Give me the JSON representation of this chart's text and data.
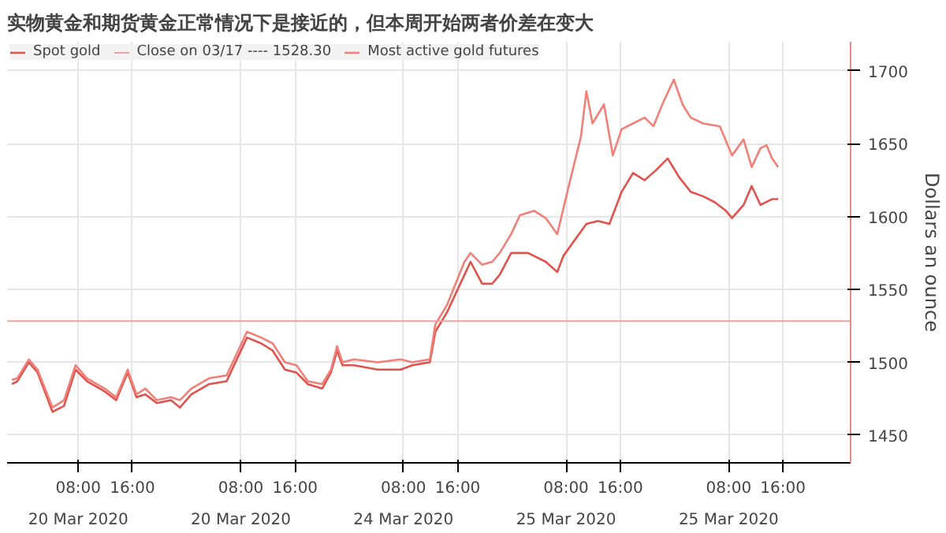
{
  "chart_data": {
    "type": "line",
    "title": "实物黄金和期货黄金正常情况下是接近的，但本周开始两者价差在变大",
    "ylabel": "Dollars an ounce",
    "xlim": [
      "2020-03-20T21:30",
      "2020-03-26T02:00"
    ],
    "ylim": [
      1431,
      1720
    ],
    "annotations": [
      "20 Mar 2020",
      "20 Mar 2020",
      "24 Mar 2020",
      "25 Mar 2020",
      "25 Mar 2020"
    ],
    "xticks": [
      {
        "value": "2020-03-21T08:00",
        "label": "08:00"
      },
      {
        "value": "2020-03-21T16:00",
        "label": "16:00"
      },
      {
        "value": "2020-03-22T08:00",
        "label": "08:00"
      },
      {
        "value": "2020-03-22T16:00",
        "label": "16:00"
      },
      {
        "value": "2020-03-23T08:00",
        "label": "08:00"
      },
      {
        "value": "2020-03-23T16:00",
        "label": "16:00"
      },
      {
        "value": "2020-03-24T08:00",
        "label": "08:00"
      },
      {
        "value": "2020-03-24T16:00",
        "label": "16:00"
      },
      {
        "value": "2020-03-25T08:00",
        "label": "08:00"
      },
      {
        "value": "2020-03-25T16:00",
        "label": "16:00"
      }
    ],
    "yticks": [
      1450,
      1500,
      1550,
      1600,
      1650,
      1700
    ],
    "grid": true,
    "legend": "top left",
    "ref_lines": [
      {
        "axis": "y",
        "value": 1528.3,
        "label": "Close on 03/17 ---- 1528.30",
        "color": "#f2a0a0"
      }
    ],
    "series": [
      {
        "name": "Spot gold",
        "color": "#e0524c",
        "x": [
          "2020-03-20T22:12",
          "2020-03-20T23:00",
          "2020-03-21T00:42",
          "2020-03-21T02:00",
          "2020-03-21T04:12",
          "2020-03-21T05:54",
          "2020-03-21T07:36",
          "2020-03-21T09:18",
          "2020-03-21T11:54",
          "2020-03-21T13:36",
          "2020-03-21T15:18",
          "2020-03-21T16:36",
          "2020-03-21T17:54",
          "2020-03-21T19:36",
          "2020-03-21T21:42",
          "2020-03-21T23:00",
          "2020-03-22T00:42",
          "2020-03-22T03:18",
          "2020-03-22T05:54",
          "2020-03-22T07:36",
          "2020-03-22T08:54",
          "2020-03-22T11:00",
          "2020-03-22T12:42",
          "2020-03-22T14:30",
          "2020-03-22T16:12",
          "2020-03-22T17:54",
          "2020-03-22T20:00",
          "2020-03-22T21:18",
          "2020-03-22T22:12",
          "2020-03-22T23:00",
          "2020-03-23T00:42",
          "2020-03-23T04:12",
          "2020-03-23T07:36",
          "2020-03-23T09:18",
          "2020-03-23T11:54",
          "2020-03-23T12:42",
          "2020-03-23T14:24",
          "2020-03-23T17:00",
          "2020-03-23T17:54",
          "2020-03-23T19:36",
          "2020-03-23T21:06",
          "2020-03-23T22:12",
          "2020-03-23T23:54",
          "2020-03-24T02:24",
          "2020-03-24T05:00",
          "2020-03-24T06:42",
          "2020-03-24T07:36",
          "2020-03-24T09:18",
          "2020-03-24T11:00",
          "2020-03-24T12:42",
          "2020-03-24T14:24",
          "2020-03-24T16:12",
          "2020-03-24T17:54",
          "2020-03-24T19:36",
          "2020-03-24T21:18",
          "2020-03-24T23:00",
          "2020-03-25T00:42",
          "2020-03-25T02:24",
          "2020-03-25T04:12",
          "2020-03-25T05:54",
          "2020-03-25T07:36",
          "2020-03-25T08:30",
          "2020-03-25T10:12",
          "2020-03-25T11:24",
          "2020-03-25T12:42",
          "2020-03-25T14:24",
          "2020-03-25T15:18"
        ],
        "values": [
          1485,
          1487,
          1500,
          1493,
          1466,
          1470,
          1495,
          1487,
          1480,
          1474,
          1493,
          1476,
          1478,
          1472,
          1474,
          1469,
          1478,
          1485,
          1487,
          1504,
          1517,
          1513,
          1508,
          1495,
          1493,
          1485,
          1482,
          1493,
          1508,
          1498,
          1498,
          1495,
          1495,
          1498,
          1500,
          1521,
          1534,
          1560,
          1569,
          1554,
          1554,
          1560,
          1575,
          1575,
          1569,
          1562,
          1573,
          1584,
          1595,
          1597,
          1595,
          1617,
          1630,
          1625,
          1632,
          1640,
          1627,
          1617,
          1614,
          1610,
          1604,
          1599,
          1608,
          1621,
          1608,
          1612,
          1612
        ]
      },
      {
        "name": "Most active gold futures",
        "color": "#f08078",
        "x": [
          "2020-03-20T22:12",
          "2020-03-20T23:00",
          "2020-03-21T00:42",
          "2020-03-21T02:00",
          "2020-03-21T04:12",
          "2020-03-21T05:54",
          "2020-03-21T07:36",
          "2020-03-21T09:18",
          "2020-03-21T11:54",
          "2020-03-21T13:36",
          "2020-03-21T15:18",
          "2020-03-21T16:36",
          "2020-03-21T17:54",
          "2020-03-21T19:36",
          "2020-03-21T21:42",
          "2020-03-21T23:00",
          "2020-03-22T00:42",
          "2020-03-22T03:18",
          "2020-03-22T05:54",
          "2020-03-22T07:36",
          "2020-03-22T08:54",
          "2020-03-22T11:00",
          "2020-03-22T12:42",
          "2020-03-22T14:30",
          "2020-03-22T16:12",
          "2020-03-22T17:54",
          "2020-03-22T20:00",
          "2020-03-22T21:18",
          "2020-03-22T22:12",
          "2020-03-22T23:00",
          "2020-03-23T00:42",
          "2020-03-23T04:12",
          "2020-03-23T07:36",
          "2020-03-23T09:18",
          "2020-03-23T11:54",
          "2020-03-23T12:42",
          "2020-03-23T14:24",
          "2020-03-23T17:00",
          "2020-03-23T17:54",
          "2020-03-23T19:36",
          "2020-03-23T21:06",
          "2020-03-23T22:12",
          "2020-03-23T23:54",
          "2020-03-24T01:12",
          "2020-03-24T03:18",
          "2020-03-24T05:00",
          "2020-03-24T06:42",
          "2020-03-24T08:24",
          "2020-03-24T10:12",
          "2020-03-24T11:00",
          "2020-03-24T11:54",
          "2020-03-24T13:36",
          "2020-03-24T14:54",
          "2020-03-24T16:12",
          "2020-03-24T17:54",
          "2020-03-24T19:36",
          "2020-03-24T20:54",
          "2020-03-24T22:12",
          "2020-03-24T23:54",
          "2020-03-25T01:12",
          "2020-03-25T02:24",
          "2020-03-25T04:12",
          "2020-03-25T06:42",
          "2020-03-25T08:30",
          "2020-03-25T10:12",
          "2020-03-25T11:24",
          "2020-03-25T12:42",
          "2020-03-25T13:36",
          "2020-03-25T14:24",
          "2020-03-25T15:18"
        ],
        "values": [
          1488,
          1489,
          1502,
          1495,
          1469,
          1474,
          1498,
          1489,
          1482,
          1476,
          1495,
          1478,
          1482,
          1474,
          1476,
          1474,
          1482,
          1489,
          1491,
          1508,
          1521,
          1517,
          1513,
          1500,
          1498,
          1487,
          1485,
          1495,
          1511,
          1500,
          1502,
          1500,
          1502,
          1500,
          1502,
          1526,
          1539,
          1569,
          1575,
          1567,
          1569,
          1575,
          1588,
          1601,
          1604,
          1599,
          1588,
          1621,
          1655,
          1686,
          1664,
          1677,
          1642,
          1660,
          1664,
          1668,
          1662,
          1677,
          1694,
          1677,
          1668,
          1664,
          1662,
          1642,
          1653,
          1634,
          1647,
          1649,
          1640,
          1634
        ]
      }
    ]
  }
}
